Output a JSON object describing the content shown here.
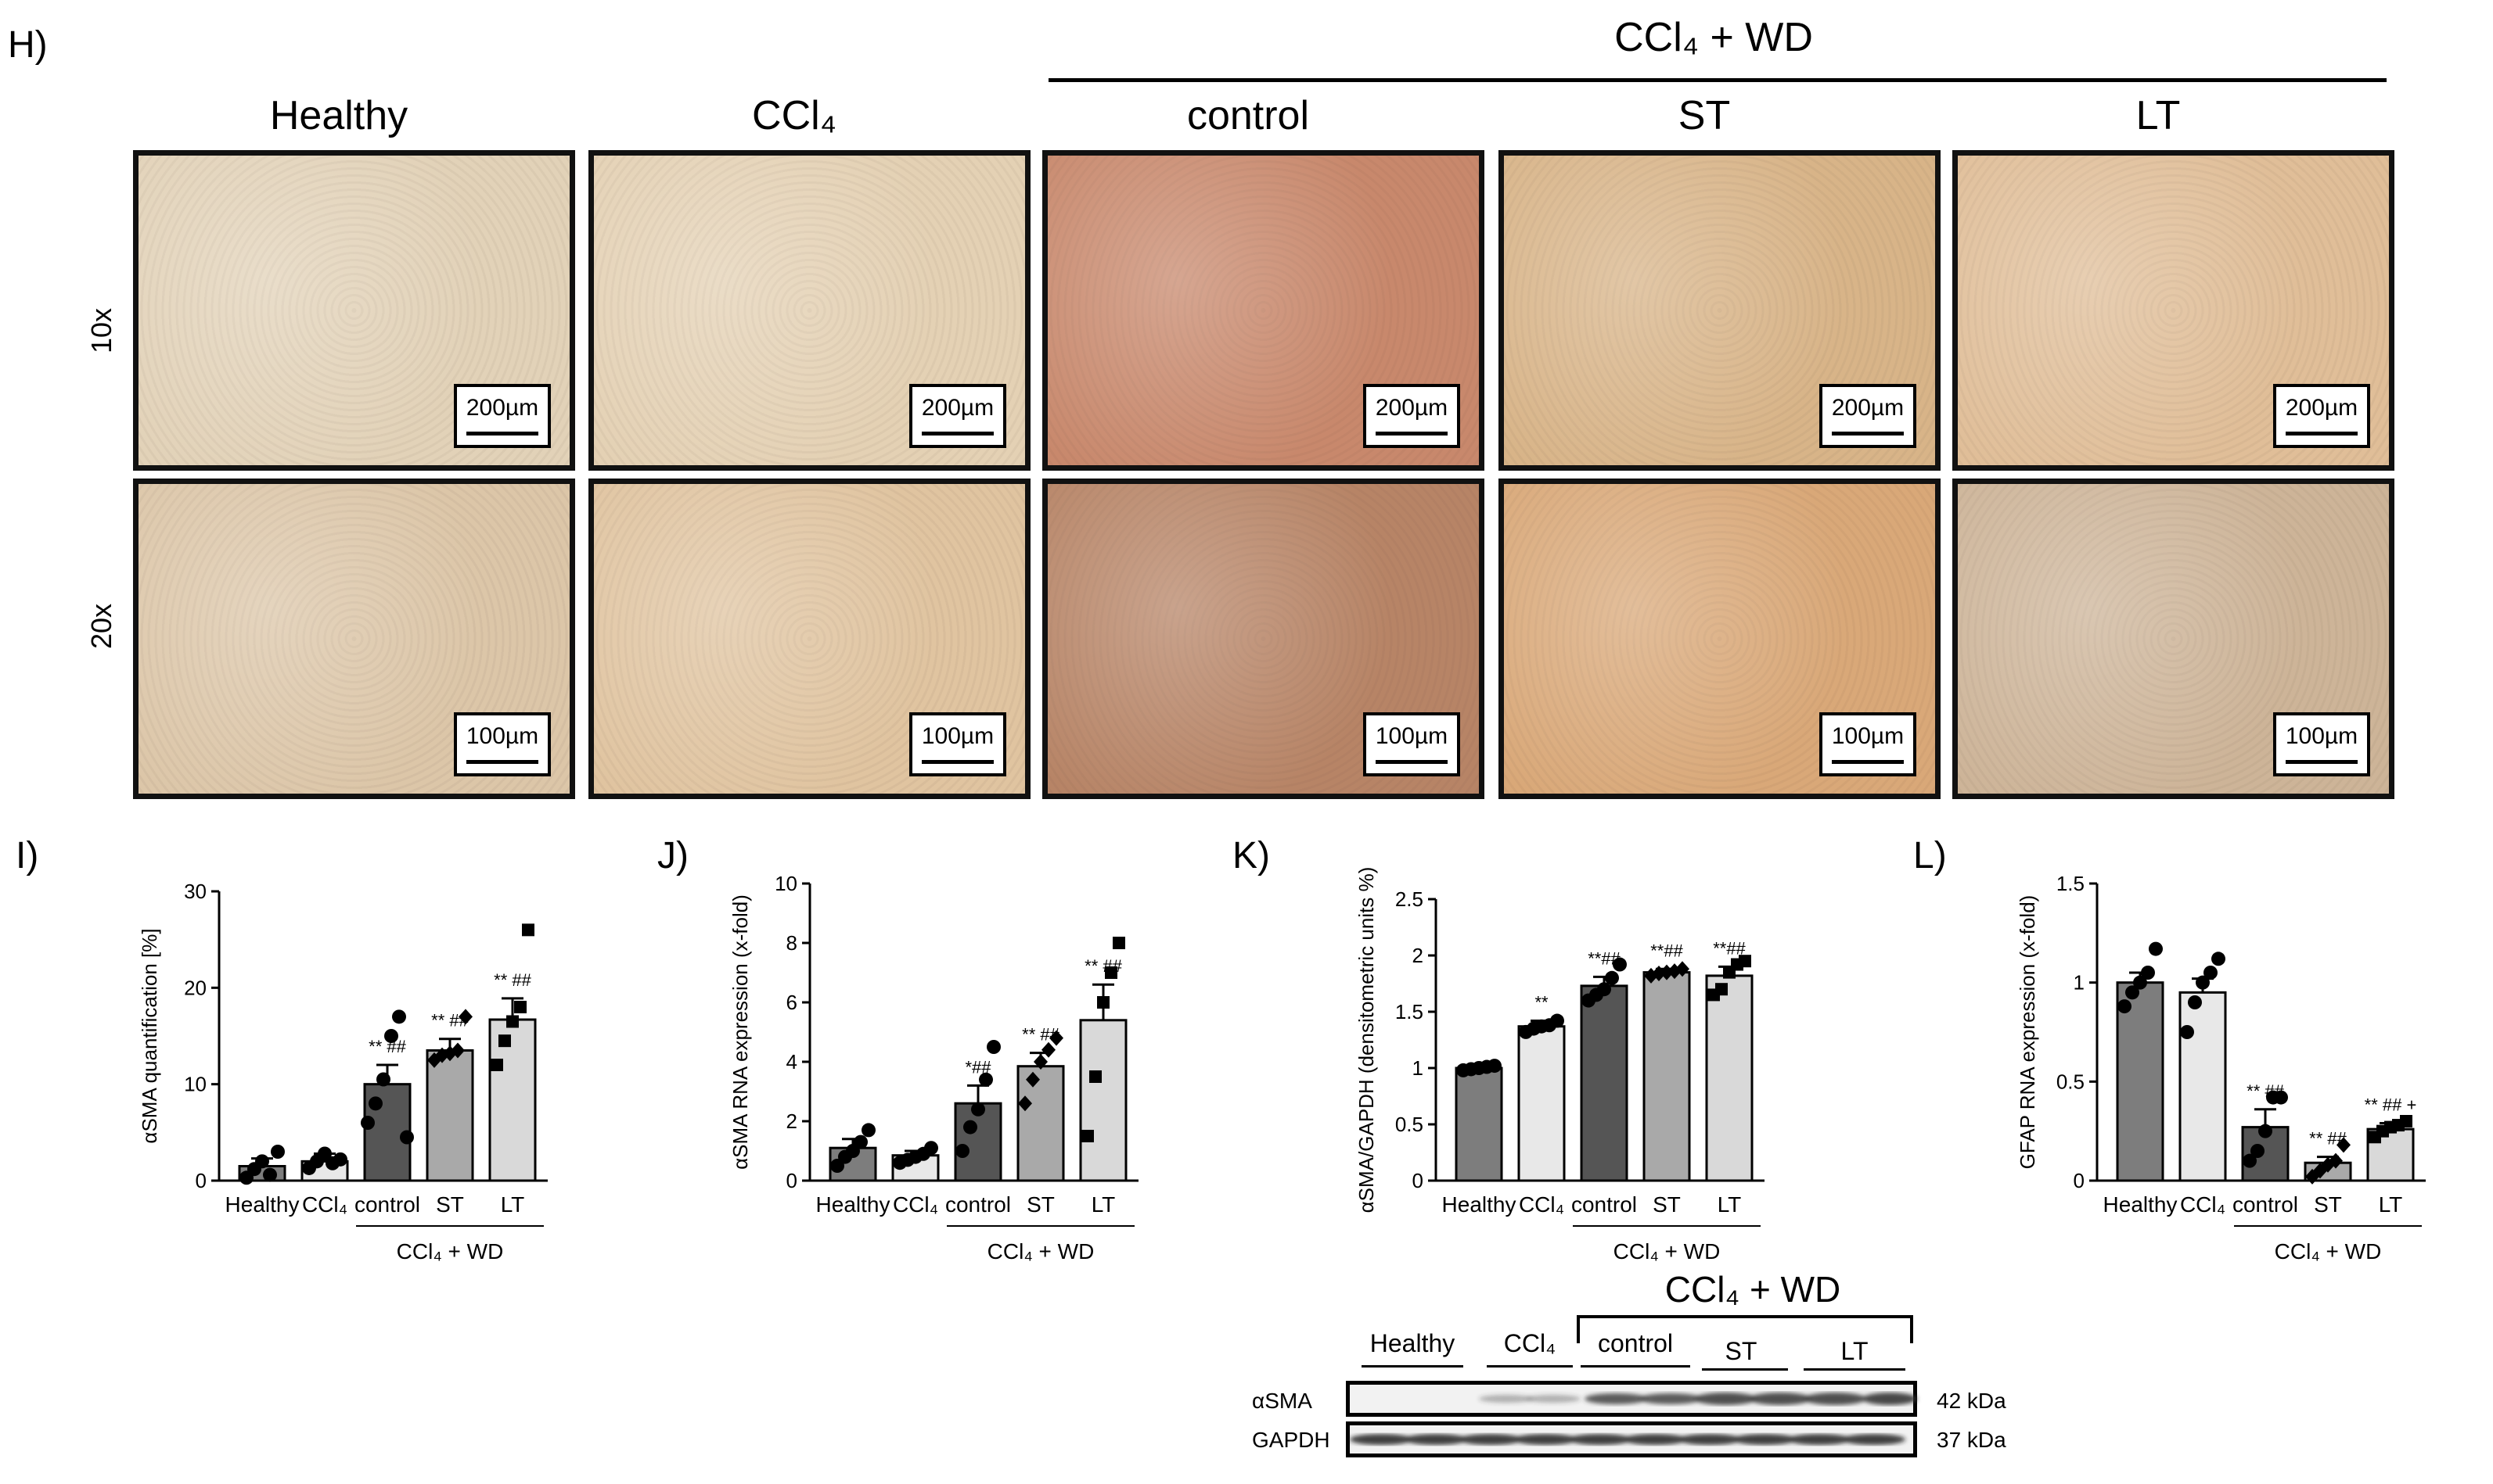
{
  "panel_H": {
    "label": "H)",
    "group_label": "CCl₄ + WD",
    "columns": [
      "Healthy",
      "CCl₄",
      "control",
      "ST",
      "LT"
    ],
    "rows": [
      "10x",
      "20x"
    ],
    "scale_10x": "200µm",
    "scale_20x": "100µm",
    "tile_colors": [
      [
        "#e2d2b8",
        "#e4d1b4",
        "#c8886c",
        "#d8b488",
        "#e0be98"
      ],
      [
        "#dcc6a8",
        "#e0c4a0",
        "#b78466",
        "#d9a878",
        "#cdb498"
      ]
    ]
  },
  "western_blot": {
    "group_label": "CCl₄ + WD",
    "lanes": [
      "Healthy",
      "CCl₄",
      "control",
      "ST",
      "LT"
    ],
    "rows": [
      {
        "protein": "αSMA",
        "size": "42 kDa"
      },
      {
        "protein": "GAPDH",
        "size": "37 kDa"
      }
    ]
  },
  "chart_data": [
    {
      "panel": "I)",
      "type": "bar",
      "categories": [
        "Healthy",
        "CCl₄",
        "control",
        "ST",
        "LT"
      ],
      "values": [
        1.5,
        2.0,
        10.0,
        13.5,
        16.7
      ],
      "errors": [
        0.8,
        0.8,
        2.0,
        1.2,
        2.2
      ],
      "points": [
        [
          0.3,
          1.2,
          2.0,
          0.6,
          3.0
        ],
        [
          1.3,
          2.0,
          2.8,
          1.8,
          2.2
        ],
        [
          6.0,
          8.0,
          10.5,
          15.0,
          17.0,
          4.5
        ],
        [
          12.5,
          13.0,
          13.2,
          13.5,
          17.0
        ],
        [
          12.0,
          14.5,
          16.5,
          18.0,
          26.0
        ]
      ],
      "markers": [
        "circle",
        "circle",
        "circle",
        "diamond",
        "square"
      ],
      "colors": [
        "#7d7d7d",
        "#e8e8e8",
        "#555555",
        "#a9a9a9",
        "#d9d9d9"
      ],
      "significance": [
        "",
        "",
        "** ##",
        "** ##",
        "** ##"
      ],
      "ylabel": "αSMA quantification [%]",
      "yticks": [
        0,
        10,
        20,
        30
      ],
      "ylim": [
        0,
        30
      ],
      "group_label": "CCl₄ + WD"
    },
    {
      "panel": "J)",
      "type": "bar",
      "categories": [
        "Healthy",
        "CCl₄",
        "control",
        "ST",
        "LT"
      ],
      "values": [
        1.1,
        0.85,
        2.6,
        3.85,
        5.4
      ],
      "errors": [
        0.3,
        0.15,
        0.6,
        0.45,
        1.2
      ],
      "points": [
        [
          0.5,
          0.8,
          1.0,
          1.3,
          1.7
        ],
        [
          0.6,
          0.7,
          0.8,
          0.9,
          1.1
        ],
        [
          1.0,
          1.8,
          2.4,
          3.4,
          4.5
        ],
        [
          2.6,
          3.4,
          4.0,
          4.4,
          4.8
        ],
        [
          1.5,
          3.5,
          6.0,
          7.0,
          8.0
        ]
      ],
      "markers": [
        "circle",
        "circle",
        "circle",
        "diamond",
        "square"
      ],
      "colors": [
        "#7d7d7d",
        "#e8e8e8",
        "#555555",
        "#a9a9a9",
        "#d9d9d9"
      ],
      "significance": [
        "",
        "",
        "*##",
        "** ##",
        "** ##"
      ],
      "ylabel": "αSMA RNA expression (x-fold)",
      "yticks": [
        0,
        2,
        4,
        6,
        8,
        10
      ],
      "ylim": [
        0,
        10
      ],
      "group_label": "CCl₄ + WD"
    },
    {
      "panel": "K)",
      "type": "bar",
      "categories": [
        "Healthy",
        "CCl₄",
        "control",
        "ST",
        "LT"
      ],
      "values": [
        1.0,
        1.37,
        1.73,
        1.85,
        1.82
      ],
      "errors": [
        0.02,
        0.05,
        0.08,
        0.03,
        0.08
      ],
      "points": [
        [
          0.98,
          0.99,
          1.0,
          1.01,
          1.02
        ],
        [
          1.32,
          1.35,
          1.37,
          1.38,
          1.42
        ],
        [
          1.6,
          1.65,
          1.7,
          1.8,
          1.92
        ],
        [
          1.82,
          1.84,
          1.85,
          1.86,
          1.88
        ],
        [
          1.65,
          1.7,
          1.85,
          1.92,
          1.95
        ]
      ],
      "markers": [
        "circle",
        "circle",
        "circle",
        "diamond",
        "square"
      ],
      "colors": [
        "#7d7d7d",
        "#e8e8e8",
        "#555555",
        "#a9a9a9",
        "#d9d9d9"
      ],
      "significance": [
        "",
        "**",
        "**##",
        "**##",
        "**##"
      ],
      "ylabel": "αSMA/GAPDH (densitometric units %)",
      "yticks": [
        0.0,
        0.5,
        1.0,
        1.5,
        2.0,
        2.5
      ],
      "ylim": [
        0,
        2.5
      ],
      "group_label": "CCl₄ + WD"
    },
    {
      "panel": "L)",
      "type": "bar",
      "categories": [
        "Healthy",
        "CCl₄",
        "control",
        "ST",
        "LT"
      ],
      "values": [
        1.0,
        0.95,
        0.27,
        0.09,
        0.26
      ],
      "errors": [
        0.05,
        0.07,
        0.09,
        0.03,
        0.03
      ],
      "points": [
        [
          0.88,
          0.95,
          1.0,
          1.05,
          1.17
        ],
        [
          0.75,
          0.9,
          1.0,
          1.05,
          1.12
        ],
        [
          0.1,
          0.15,
          0.25,
          0.42,
          0.42
        ],
        [
          0.02,
          0.05,
          0.08,
          0.1,
          0.18
        ],
        [
          0.22,
          0.25,
          0.27,
          0.28,
          0.3
        ]
      ],
      "markers": [
        "circle",
        "circle",
        "circle",
        "diamond",
        "square"
      ],
      "colors": [
        "#7d7d7d",
        "#e8e8e8",
        "#555555",
        "#a9a9a9",
        "#d9d9d9"
      ],
      "significance": [
        "",
        "",
        "** ##",
        "** ##",
        "** ## +"
      ],
      "ylabel": "GFAP RNA expression (x-fold)",
      "yticks": [
        0.0,
        0.5,
        1.0,
        1.5
      ],
      "ylim": [
        0,
        1.5
      ],
      "group_label": "CCl₄ + WD"
    }
  ]
}
